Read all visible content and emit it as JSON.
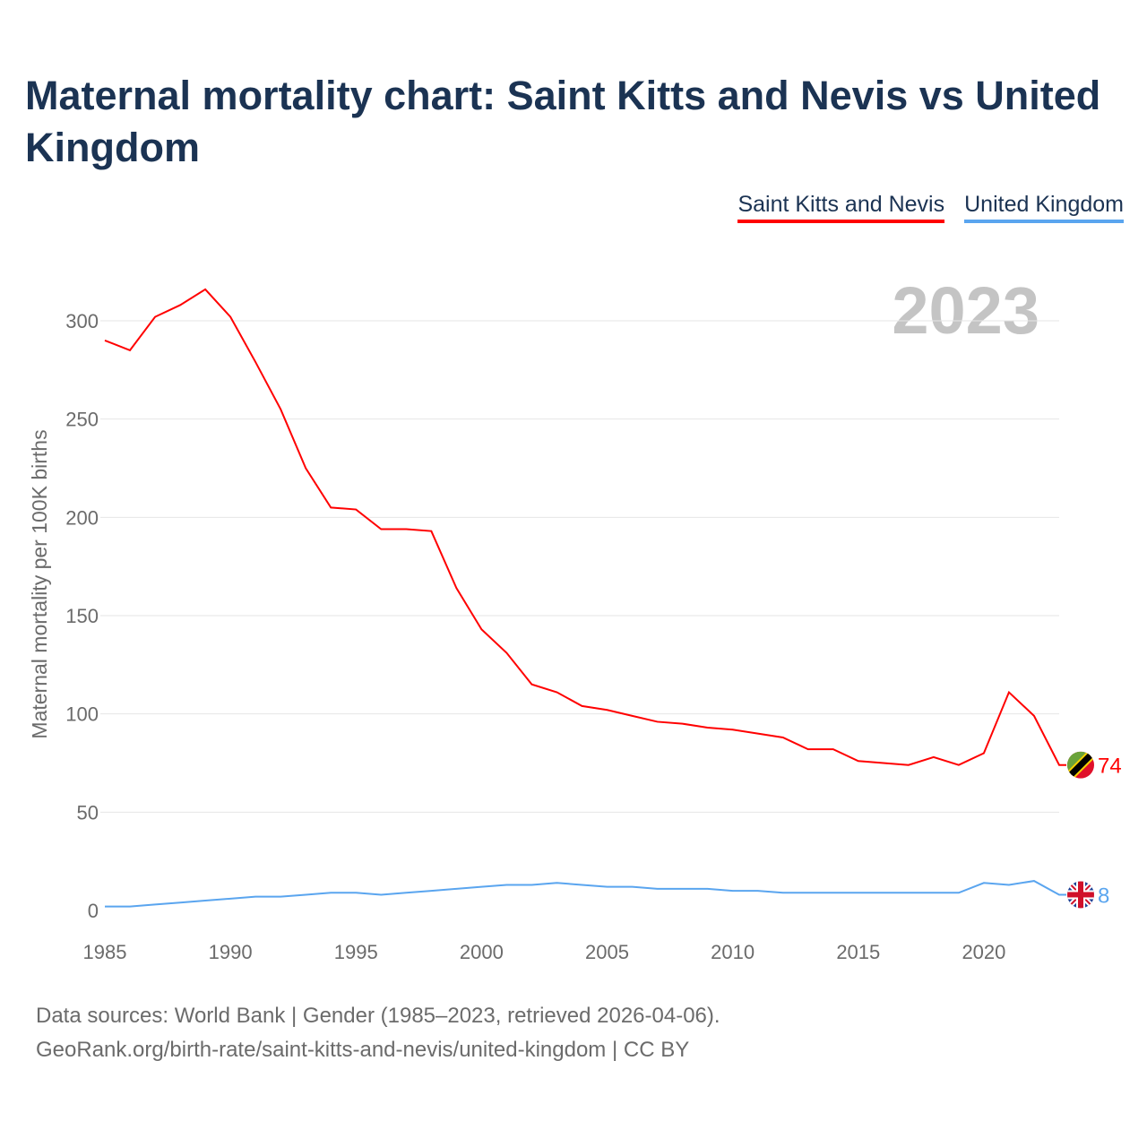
{
  "title": "Maternal mortality chart: Saint Kitts and Nevis vs United Kingdom",
  "sources": {
    "line1": "Data sources: World Bank | Gender (1985–2023, retrieved 2026-04-06).",
    "line2": "GeoRank.org/birth-rate/saint-kitts-and-nevis/united-kingdom | CC BY"
  },
  "chart_data": {
    "type": "line",
    "title": "Maternal mortality chart: Saint Kitts and Nevis vs United Kingdom",
    "xlabel": "",
    "ylabel": "Maternal mortality per 100K births",
    "year_label": "2023",
    "xlim": [
      1985,
      2023
    ],
    "ylim": [
      0,
      320
    ],
    "xticks": [
      1985,
      1990,
      1995,
      2000,
      2005,
      2010,
      2015,
      2020
    ],
    "yticks": [
      0,
      50,
      100,
      150,
      200,
      250,
      300
    ],
    "grid": true,
    "legend": "top-right",
    "x": [
      1985,
      1986,
      1987,
      1988,
      1989,
      1990,
      1991,
      1992,
      1993,
      1994,
      1995,
      1996,
      1997,
      1998,
      1999,
      2000,
      2001,
      2002,
      2003,
      2004,
      2005,
      2006,
      2007,
      2008,
      2009,
      2010,
      2011,
      2012,
      2013,
      2014,
      2015,
      2016,
      2017,
      2018,
      2019,
      2020,
      2021,
      2022,
      2023
    ],
    "series": [
      {
        "name": "Saint Kitts and Nevis",
        "color": "#ff0000",
        "end_label": "74",
        "values": [
          290,
          285,
          302,
          308,
          316,
          302,
          279,
          255,
          225,
          205,
          204,
          194,
          194,
          193,
          164,
          143,
          131,
          115,
          111,
          104,
          102,
          99,
          96,
          95,
          93,
          92,
          90,
          88,
          82,
          82,
          76,
          75,
          74,
          78,
          74,
          80,
          111,
          99,
          74
        ]
      },
      {
        "name": "United Kingdom",
        "color": "#5aa5ef",
        "end_label": "8",
        "values": [
          2,
          2,
          3,
          4,
          5,
          6,
          7,
          7,
          8,
          9,
          9,
          8,
          9,
          10,
          11,
          12,
          13,
          13,
          14,
          13,
          12,
          12,
          11,
          11,
          11,
          10,
          10,
          9,
          9,
          9,
          9,
          9,
          9,
          9,
          9,
          14,
          13,
          15,
          8
        ]
      }
    ]
  }
}
